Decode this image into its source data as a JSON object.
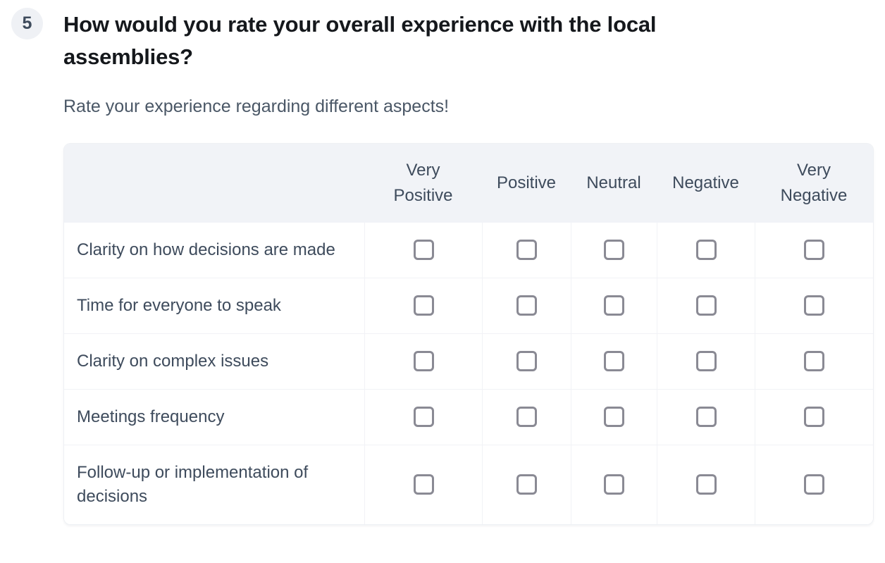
{
  "question": {
    "number": "5",
    "title": "How would you rate your overall experience with the local assemblies?",
    "subtitle": "Rate your experience regarding different aspects!"
  },
  "table": {
    "columns": [
      "Very Positive",
      "Positive",
      "Neutral",
      "Negative",
      "Very Negative"
    ],
    "rows": [
      {
        "label": "Clarity on how decisions are made"
      },
      {
        "label": "Time for everyone to speak"
      },
      {
        "label": "Clarity on complex issues"
      },
      {
        "label": "Meetings frequency"
      },
      {
        "label": "Follow-up or implementation of decisions"
      }
    ],
    "all_checkboxes_state": "unchecked"
  },
  "colors": {
    "header_bg": "#f1f3f7",
    "slate_text": "#3e4b5c",
    "title_text": "#15181c",
    "subtitle_text": "#4a5766",
    "checkbox_border": "#8a8a94",
    "divider": "#f1f2f6",
    "badge_bg": "#eff1f5"
  }
}
